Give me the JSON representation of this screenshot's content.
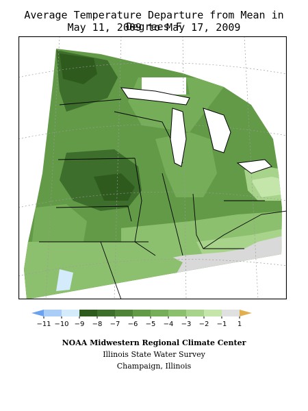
{
  "title": {
    "line1": "Average Temperature Departure from Mean in Degrees F",
    "line2": "May 11, 2009 to May 17, 2009"
  },
  "legend": {
    "ticks": [
      "−11",
      "−10",
      "−9",
      "−8",
      "−7",
      "−6",
      "−5",
      "−4",
      "−3",
      "−2",
      "−1",
      "1"
    ],
    "colors": [
      "#6aa2f0",
      "#a9cdf7",
      "#d4ebfb",
      "#2e5a1e",
      "#3d6e2b",
      "#4f8438",
      "#629a47",
      "#76ad58",
      "#8dc06e",
      "#a7d48a",
      "#c4e6ab",
      "#e0e0e0",
      "#e0b050"
    ]
  },
  "map": {
    "colors": {
      "gray": "#d9d9d9",
      "light_blue": "#d4ebfb",
      "border": "#000000",
      "graticule": "#9a9a9a"
    }
  },
  "credits": {
    "line1": "NOAA Midwestern Regional Climate Center",
    "line2": "Illinois State Water Survey",
    "line3": "Champaign, Illinois"
  }
}
